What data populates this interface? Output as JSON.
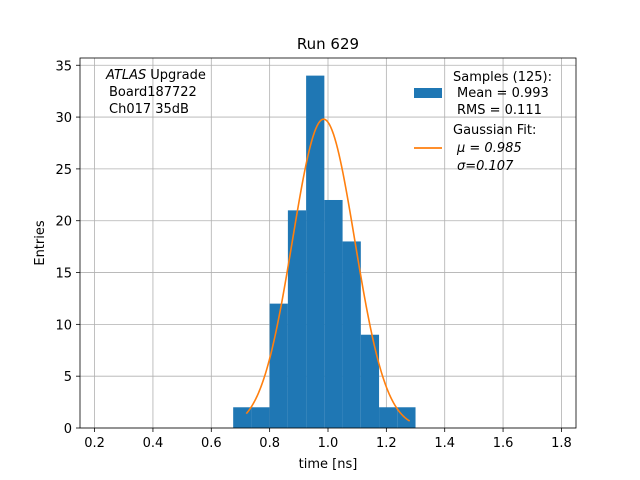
{
  "chart_data": {
    "type": "bar",
    "title": "Run 629",
    "xlabel": "time [ns]",
    "ylabel": "Entries",
    "xlim": [
      0.15,
      1.85
    ],
    "ylim": [
      0,
      35.7
    ],
    "grid": true,
    "legend_placement": "top-right",
    "xticks": [
      "0.2",
      "0.4",
      "0.6",
      "0.8",
      "1.0",
      "1.2",
      "1.4",
      "1.6",
      "1.8"
    ],
    "xtick_values": [
      0.2,
      0.4,
      0.6,
      0.8,
      1.0,
      1.2,
      1.4,
      1.6,
      1.8
    ],
    "yticks": [
      "0",
      "5",
      "10",
      "15",
      "20",
      "25",
      "30",
      "35"
    ],
    "ytick_values": [
      0,
      5,
      10,
      15,
      20,
      25,
      30,
      35
    ],
    "histogram": {
      "name": "Samples (125):",
      "color": "#1f77b4",
      "bin_edges": [
        0.675,
        0.7375,
        0.8,
        0.8625,
        0.925,
        0.9875,
        1.05,
        1.1125,
        1.175,
        1.2375,
        1.3
      ],
      "counts": [
        2,
        2,
        12,
        21,
        34,
        22,
        18,
        9,
        2,
        2
      ]
    },
    "fit": {
      "name": "Gaussian Fit:",
      "color": "#ff7f0e",
      "amplitude": 29.8,
      "mu": 0.985,
      "sigma": 0.107,
      "x_range": [
        0.72,
        1.28
      ]
    },
    "legend": {
      "samples_label": "Samples (125):",
      "mean_label": "Mean = 0.993",
      "rms_label": "RMS = 0.111",
      "fit_label": "Gaussian Fit:",
      "mu_label": "μ = 0.985",
      "sigma_label": "σ=0.107"
    },
    "annotation": {
      "experiment": "ATLAS",
      "experiment_suffix": "Upgrade",
      "board": "Board187722",
      "channel": "Ch017 35dB"
    }
  }
}
